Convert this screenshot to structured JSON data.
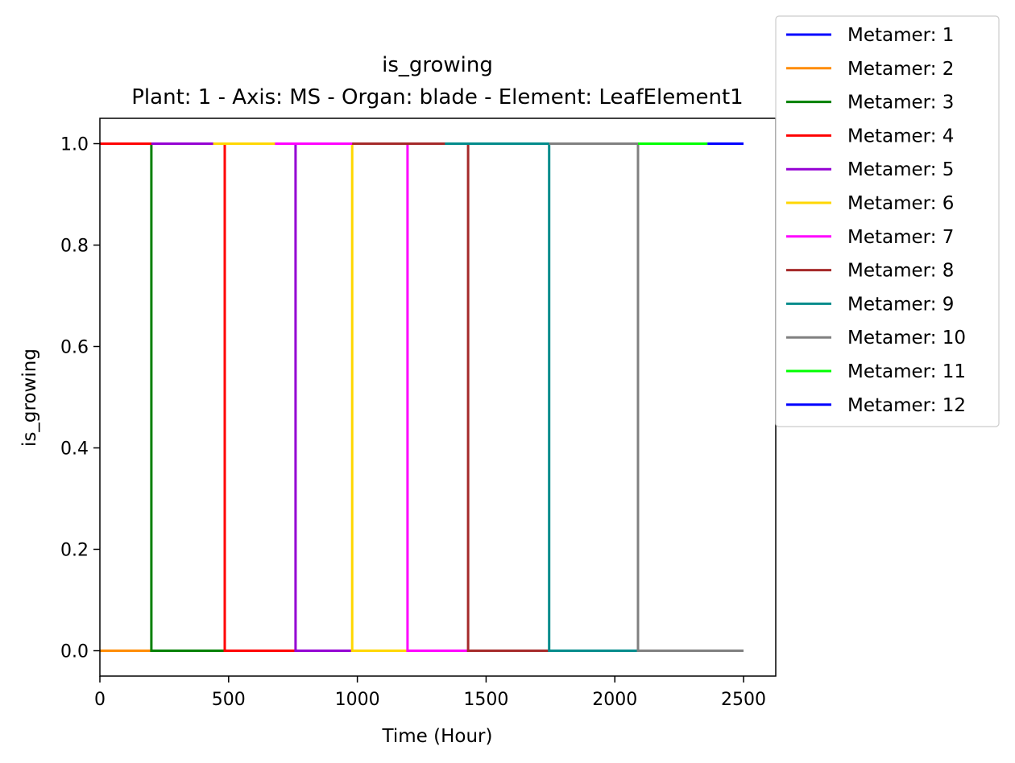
{
  "chart_data": {
    "type": "line",
    "title": "is_growing",
    "subtitle": "Plant: 1 - Axis: MS - Organ: blade - Element: LeafElement1",
    "xlabel": "Time (Hour)",
    "ylabel": "is_growing",
    "xlim": [
      0,
      2625
    ],
    "ylim": [
      -0.05,
      1.05
    ],
    "x_ticks": [
      "0",
      "500",
      "1000",
      "1500",
      "2000",
      "2500"
    ],
    "y_ticks": [
      "0.0",
      "0.2",
      "0.4",
      "0.6",
      "0.8",
      "1.0"
    ],
    "grid": false,
    "legend_position": "upper-right-outside",
    "series": [
      {
        "name": "Metamer: 1",
        "color": "#0000ff",
        "x": [
          2360,
          2500
        ],
        "y": [
          1,
          1
        ]
      },
      {
        "name": "Metamer: 2",
        "color": "#ff8c00",
        "x": [
          0,
          200
        ],
        "y": [
          0,
          0
        ]
      },
      {
        "name": "Metamer: 3",
        "color": "#008000",
        "x": [
          0,
          200,
          200,
          485
        ],
        "y": [
          1,
          1,
          0,
          0
        ]
      },
      {
        "name": "Metamer: 4",
        "color": "#ff0000",
        "x": [
          0,
          200,
          485,
          485,
          760
        ],
        "y": [
          1,
          1,
          1,
          0,
          0
        ]
      },
      {
        "name": "Metamer: 5",
        "color": "#9400d3",
        "x": [
          200,
          440,
          760,
          760,
          980
        ],
        "y": [
          1,
          1,
          1,
          0,
          0
        ]
      },
      {
        "name": "Metamer: 6",
        "color": "#ffd700",
        "x": [
          440,
          680,
          980,
          980,
          1195
        ],
        "y": [
          1,
          1,
          1,
          0,
          0
        ]
      },
      {
        "name": "Metamer: 7",
        "color": "#ff00ff",
        "x": [
          680,
          980,
          1195,
          1195,
          1430
        ],
        "y": [
          1,
          1,
          1,
          0,
          0
        ]
      },
      {
        "name": "Metamer: 8",
        "color": "#a52a2a",
        "x": [
          980,
          1340,
          1430,
          1430,
          1745
        ],
        "y": [
          1,
          1,
          1,
          0,
          0
        ]
      },
      {
        "name": "Metamer: 9",
        "color": "#008b8b",
        "x": [
          1340,
          1745,
          1745,
          2090
        ],
        "y": [
          1,
          1,
          0,
          0
        ]
      },
      {
        "name": "Metamer: 10",
        "color": "#808080",
        "x": [
          1745,
          2090,
          2090,
          2500
        ],
        "y": [
          1,
          1,
          0,
          0
        ]
      },
      {
        "name": "Metamer: 11",
        "color": "#00ff00",
        "x": [
          2090,
          2360
        ],
        "y": [
          1,
          1
        ]
      },
      {
        "name": "Metamer: 12",
        "color": "#0000ff",
        "x": [
          2360,
          2500
        ],
        "y": [
          1,
          1
        ]
      }
    ]
  }
}
